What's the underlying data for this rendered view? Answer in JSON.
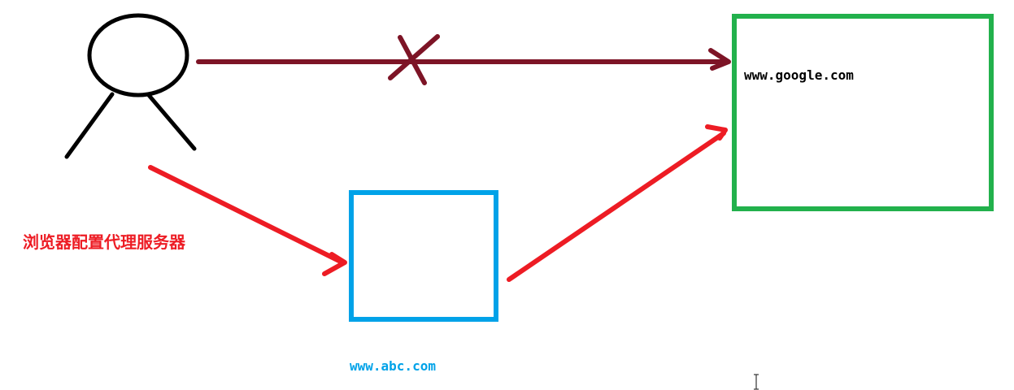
{
  "colors": {
    "person": "#000000",
    "blocked_arrow": "#7d1426",
    "proxy_arrow": "#ed1c24",
    "proxy_box": "#00a2e8",
    "target_box": "#22b14c",
    "target_text": "#000000",
    "proxy_text": "#00a2e8",
    "note_text": "#ed1c24"
  },
  "icons": {
    "person": "stick-figure-user",
    "blocked_mark": "cross-mark",
    "cursor": "text-cursor"
  },
  "labels": {
    "target_site": "www.google.com",
    "proxy_site": "www.abc.com",
    "proxy_note": "浏览器配置代理服务器"
  }
}
